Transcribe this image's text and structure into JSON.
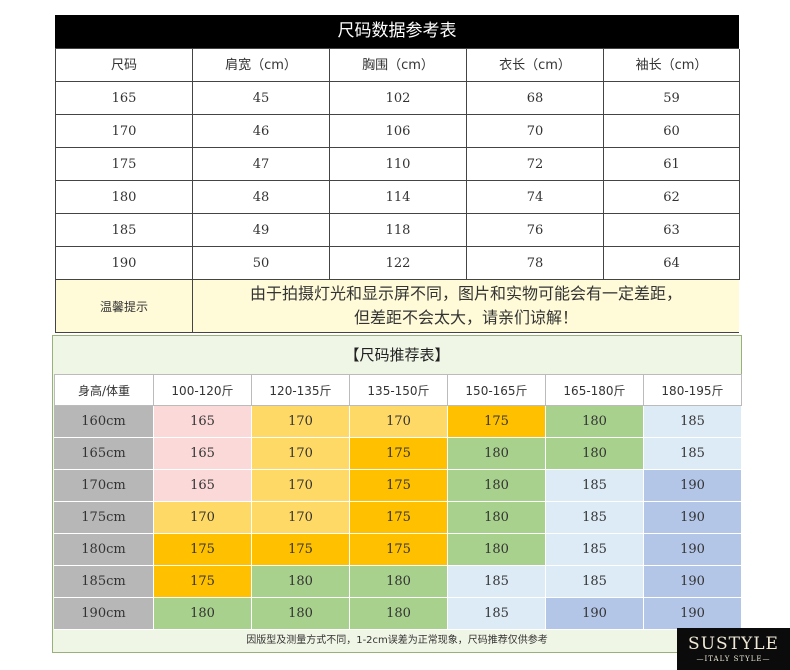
{
  "table1": {
    "title": "尺码数据参考表",
    "headers": [
      "尺码",
      "肩宽（cm）",
      "胸围（cm）",
      "衣长（cm）",
      "袖长（cm）"
    ],
    "rows": [
      [
        "165",
        "45",
        "102",
        "68",
        "59"
      ],
      [
        "170",
        "46",
        "106",
        "70",
        "60"
      ],
      [
        "175",
        "47",
        "110",
        "72",
        "61"
      ],
      [
        "180",
        "48",
        "114",
        "74",
        "62"
      ],
      [
        "185",
        "49",
        "118",
        "76",
        "63"
      ],
      [
        "190",
        "50",
        "122",
        "78",
        "64"
      ]
    ],
    "tip_label": "温馨提示",
    "tip_line1": "由于拍摄灯光和显示屏不同，图片和实物可能会有一定差距，",
    "tip_line2": "但差距不会太大，请亲们谅解！"
  },
  "table2": {
    "title": "【尺码推荐表】",
    "corner": "身高/体重",
    "weights": [
      "100-120斤",
      "120-135斤",
      "135-150斤",
      "150-165斤",
      "165-180斤",
      "180-195斤"
    ],
    "heights": [
      "160cm",
      "165cm",
      "170cm",
      "175cm",
      "180cm",
      "185cm",
      "190cm"
    ],
    "values": [
      [
        "165",
        "170",
        "170",
        "175",
        "180",
        "185"
      ],
      [
        "165",
        "170",
        "175",
        "180",
        "180",
        "185"
      ],
      [
        "165",
        "170",
        "175",
        "180",
        "185",
        "190"
      ],
      [
        "170",
        "170",
        "175",
        "180",
        "185",
        "190"
      ],
      [
        "175",
        "175",
        "175",
        "180",
        "185",
        "190"
      ],
      [
        "175",
        "180",
        "180",
        "185",
        "185",
        "190"
      ],
      [
        "180",
        "180",
        "180",
        "185",
        "190",
        "190"
      ]
    ],
    "size_colors": {
      "165": "#fcd9d9",
      "170": "#ffd966",
      "175": "#ffc000",
      "180": "#a9d18e",
      "185": "#ddebf7",
      "190": "#b4c6e7"
    },
    "note": "因版型及测量方式不同，1-2cm误差为正常现象，尺码推荐仅供参考"
  },
  "logo": {
    "brand": "SUSTYLE",
    "tagline": "—ITALY STYLE—"
  }
}
